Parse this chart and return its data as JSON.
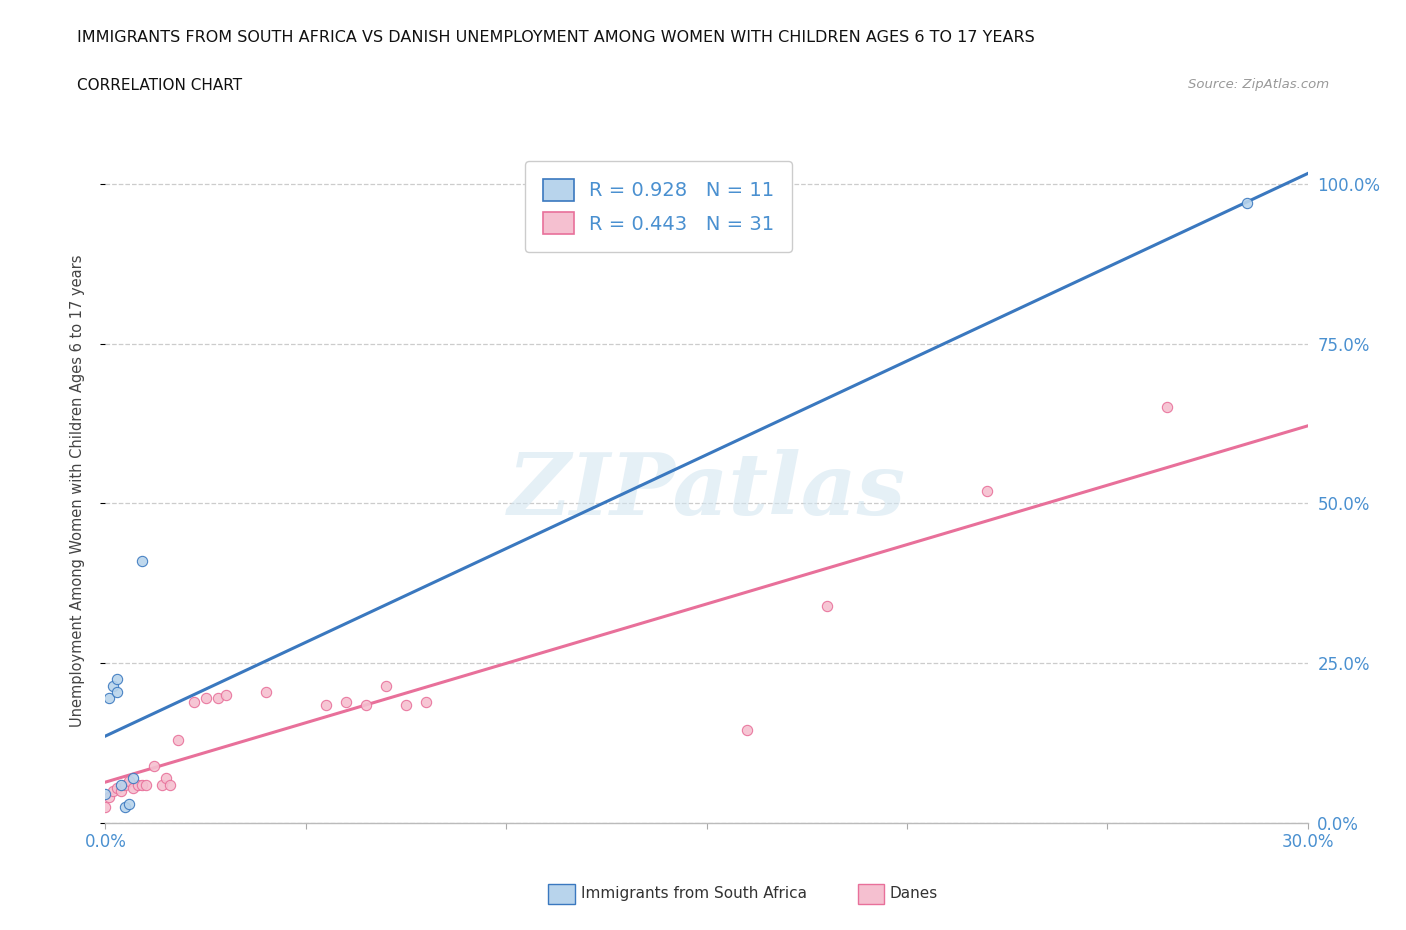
{
  "title": "IMMIGRANTS FROM SOUTH AFRICA VS DANISH UNEMPLOYMENT AMONG WOMEN WITH CHILDREN AGES 6 TO 17 YEARS",
  "subtitle": "CORRELATION CHART",
  "source": "Source: ZipAtlas.com",
  "ylabel": "Unemployment Among Women with Children Ages 6 to 17 years",
  "xmin": 0.0,
  "xmax": 0.3,
  "ymin": 0.0,
  "ymax": 1.04,
  "ytick_positions": [
    0.0,
    0.25,
    0.5,
    0.75,
    1.0
  ],
  "ytick_labels": [
    "0.0%",
    "25.0%",
    "50.0%",
    "75.0%",
    "100.0%"
  ],
  "xtick_positions": [
    0.0,
    0.05,
    0.1,
    0.15,
    0.2,
    0.25,
    0.3
  ],
  "blue_color": "#b8d4ec",
  "pink_color": "#f5c0d0",
  "blue_line_color": "#3a78bf",
  "pink_line_color": "#e8709a",
  "blue_edge_color": "#3a78bf",
  "pink_edge_color": "#e8709a",
  "label_color": "#4a90d0",
  "tick_color": "#4a90d0",
  "r_blue": "0.928",
  "n_blue": "11",
  "r_pink": "0.443",
  "n_pink": "31",
  "blue_scatter_x": [
    0.0,
    0.001,
    0.002,
    0.003,
    0.003,
    0.004,
    0.005,
    0.006,
    0.007,
    0.009,
    0.285
  ],
  "blue_scatter_y": [
    0.045,
    0.195,
    0.215,
    0.205,
    0.225,
    0.06,
    0.025,
    0.03,
    0.07,
    0.41,
    0.97
  ],
  "pink_scatter_x": [
    0.0,
    0.001,
    0.002,
    0.003,
    0.004,
    0.005,
    0.006,
    0.007,
    0.008,
    0.009,
    0.01,
    0.012,
    0.014,
    0.015,
    0.016,
    0.018,
    0.022,
    0.025,
    0.028,
    0.03,
    0.04,
    0.055,
    0.06,
    0.065,
    0.07,
    0.075,
    0.08,
    0.16,
    0.18,
    0.22,
    0.265
  ],
  "pink_scatter_y": [
    0.025,
    0.04,
    0.05,
    0.055,
    0.05,
    0.06,
    0.065,
    0.055,
    0.06,
    0.06,
    0.06,
    0.09,
    0.06,
    0.07,
    0.06,
    0.13,
    0.19,
    0.195,
    0.195,
    0.2,
    0.205,
    0.185,
    0.19,
    0.185,
    0.215,
    0.185,
    0.19,
    0.145,
    0.34,
    0.52,
    0.65
  ],
  "watermark_text": "ZIPatlas",
  "background_color": "#ffffff",
  "grid_color": "#cccccc"
}
